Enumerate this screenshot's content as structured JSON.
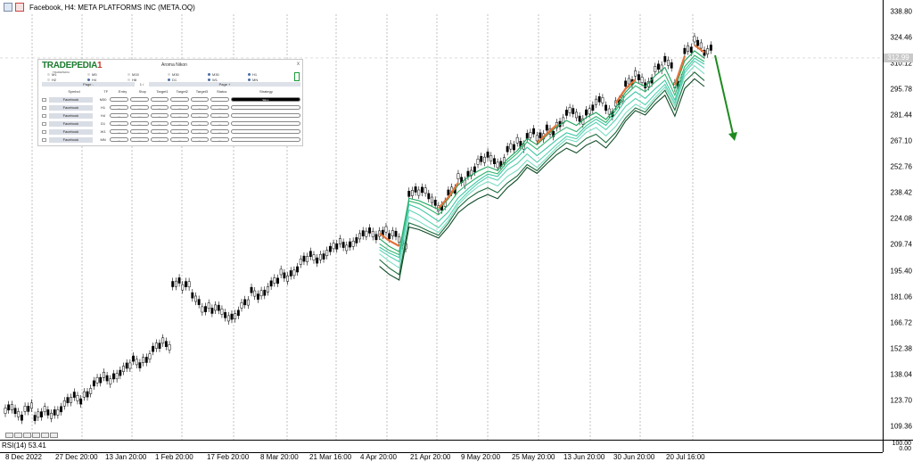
{
  "window": {
    "title": "Facebook, H4:  META PLATFORMS INC (META.OQ)"
  },
  "price_axis": {
    "ticks": [
      "338.80",
      "324.46",
      "310.12",
      "295.78",
      "281.44",
      "267.10",
      "252.76",
      "238.42",
      "224.08",
      "209.74",
      "195.40",
      "181.06",
      "166.72",
      "152.38",
      "138.04",
      "123.70",
      "109.36"
    ],
    "current_price": "312.99",
    "grid_color": "#9a9a9a"
  },
  "time_axis": {
    "ticks": [
      "8 Dec 2022",
      "27 Dec 20:00",
      "13 Jan 20:00",
      "1 Feb 20:00",
      "17 Feb 20:00",
      "8 Mar 20:00",
      "21 Mar 16:00",
      "4 Apr 20:00",
      "21 Apr 20:00",
      "9 May 20:00",
      "25 May 20:00",
      "13 Jun 20:00",
      "30 Jun 20:00",
      "20 Jul 16:00"
    ]
  },
  "rsi": {
    "label": "RSI(14) 53.41",
    "axis_top": "100.00",
    "axis_bottom": "0.00"
  },
  "colors": {
    "ribbon_green": "#1aa35a",
    "ribbon_teal": "#3cc6a4",
    "ribbon_orange": "#e2733a",
    "arrow": "#1f8a1f",
    "brand_green": "#1a7a2e"
  },
  "panel": {
    "brand": "TRADEPEDIA",
    "brand_mark": "1",
    "brand_tag": "TRADEPEDIA",
    "title": "Aroma Nikon",
    "close": "x",
    "timeframes_row1": [
      {
        "label": "M1",
        "on": false
      },
      {
        "label": "M5",
        "on": false
      },
      {
        "label": "M15",
        "on": false
      },
      {
        "label": "M30",
        "on": false
      },
      {
        "label": "M30",
        "on": true
      },
      {
        "label": "H1",
        "on": true
      }
    ],
    "timeframes_row2": [
      {
        "label": "H2",
        "on": false
      },
      {
        "label": "H4",
        "on": true
      },
      {
        "label": "H8",
        "on": false
      },
      {
        "label": "D1",
        "on": true
      },
      {
        "label": "W1",
        "on": true
      },
      {
        "label": "MN",
        "on": true
      }
    ],
    "page_left": "Page -",
    "page_mid": "1 /",
    "page_right": "Page +",
    "headers": [
      "Symbol",
      "TF",
      "Entry",
      "Stop",
      "Target1",
      "Target2",
      "Target3",
      "Status",
      "Strategy"
    ],
    "rows": [
      {
        "symbol": "Facebook",
        "tf": "M30",
        "cells": [
          "",
          "",
          "",
          "",
          "",
          ""
        ],
        "strategy": "SELL",
        "dark": true
      },
      {
        "symbol": "Facebook",
        "tf": "H1",
        "cells": [
          "---",
          "---",
          "---",
          "---",
          "---",
          "---"
        ],
        "strategy": "",
        "dark": false
      },
      {
        "symbol": "Facebook",
        "tf": "H4",
        "cells": [
          "---",
          "---",
          "---",
          "---",
          "---",
          "---"
        ],
        "strategy": "",
        "dark": false
      },
      {
        "symbol": "Facebook",
        "tf": "D1",
        "cells": [
          "---",
          "---",
          "---",
          "---",
          "---",
          "---"
        ],
        "strategy": "",
        "dark": false
      },
      {
        "symbol": "Facebook",
        "tf": "W1",
        "cells": [
          "---",
          "---",
          "---",
          "---",
          "---",
          "---"
        ],
        "strategy": "",
        "dark": false
      },
      {
        "symbol": "Facebook",
        "tf": "MN",
        "cells": [
          "---",
          "---",
          "---",
          "---",
          "---",
          "---"
        ],
        "strategy": "",
        "dark": false
      }
    ]
  },
  "chart_data": {
    "type": "candlestick",
    "ylim": [
      102,
      345
    ],
    "series": [
      {
        "name": "candles",
        "points": [
          [
            0,
            118
          ],
          [
            1,
            116
          ],
          [
            2,
            121
          ],
          [
            3,
            114
          ],
          [
            4,
            117
          ],
          [
            5,
            119
          ],
          [
            6,
            122
          ],
          [
            7,
            125
          ],
          [
            8,
            129
          ],
          [
            9,
            133
          ],
          [
            10,
            136
          ],
          [
            11,
            139
          ],
          [
            12,
            141
          ],
          [
            13,
            145
          ],
          [
            14,
            148
          ],
          [
            15,
            152
          ],
          [
            16,
            155
          ],
          [
            17,
            190
          ],
          [
            18,
            186
          ],
          [
            19,
            180
          ],
          [
            20,
            176
          ],
          [
            21,
            173
          ],
          [
            22,
            171
          ],
          [
            23,
            172
          ],
          [
            24,
            176
          ],
          [
            25,
            183
          ],
          [
            26,
            185
          ],
          [
            27,
            188
          ],
          [
            28,
            193
          ],
          [
            29,
            196
          ],
          [
            30,
            200
          ],
          [
            31,
            203
          ],
          [
            32,
            205
          ],
          [
            33,
            207
          ],
          [
            34,
            210
          ],
          [
            35,
            212
          ],
          [
            36,
            214
          ],
          [
            37,
            216
          ],
          [
            38,
            218
          ],
          [
            39,
            214
          ],
          [
            40,
            211
          ],
          [
            41,
            240
          ],
          [
            42,
            238
          ],
          [
            43,
            235
          ],
          [
            44,
            232
          ],
          [
            45,
            238
          ],
          [
            46,
            246
          ],
          [
            47,
            251
          ],
          [
            48,
            255
          ],
          [
            49,
            258
          ],
          [
            50,
            256
          ],
          [
            51,
            262
          ],
          [
            52,
            266
          ],
          [
            53,
            272
          ],
          [
            54,
            268
          ],
          [
            55,
            273
          ],
          [
            56,
            278
          ],
          [
            57,
            282
          ],
          [
            58,
            280
          ],
          [
            59,
            285
          ],
          [
            60,
            288
          ],
          [
            61,
            284
          ],
          [
            62,
            290
          ],
          [
            63,
            298
          ],
          [
            64,
            303
          ],
          [
            65,
            300
          ],
          [
            66,
            306
          ],
          [
            67,
            311
          ],
          [
            68,
            300
          ],
          [
            69,
            316
          ],
          [
            70,
            322
          ],
          [
            71,
            318
          ]
        ]
      }
    ]
  }
}
